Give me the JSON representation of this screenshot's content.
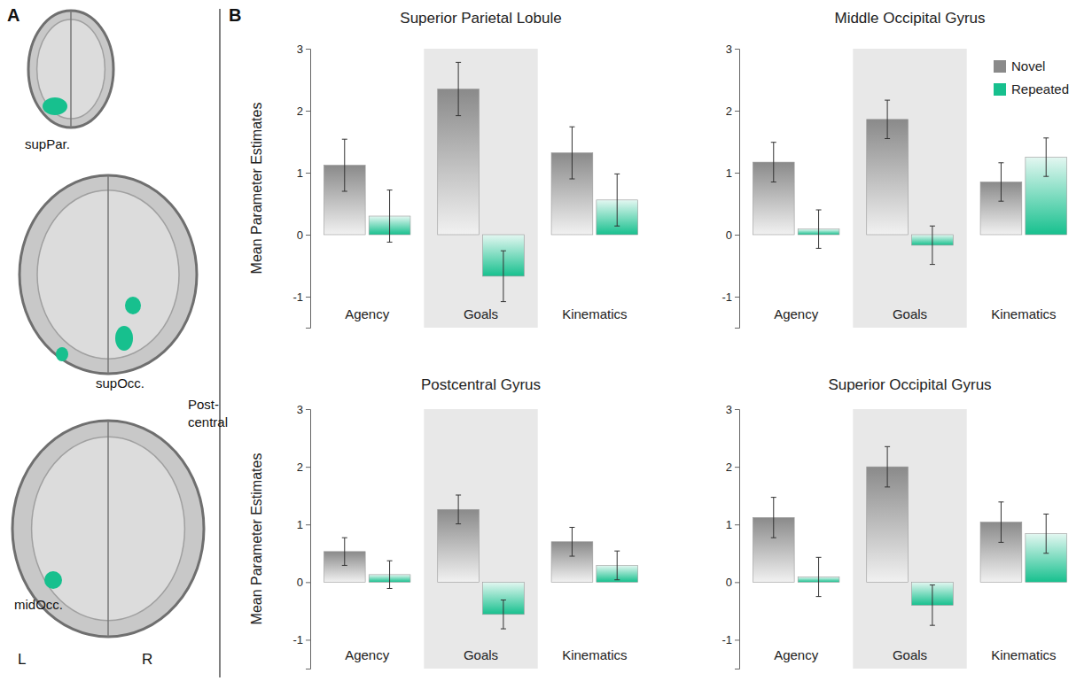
{
  "figure": {
    "panel_a": {
      "letter": "A",
      "labels": [
        "supPar.",
        "Post-central",
        "supOcc.",
        "midOcc."
      ],
      "sides": [
        "L",
        "R"
      ]
    },
    "panel_b": {
      "letter": "B"
    }
  },
  "chart_data": [
    {
      "type": "bar",
      "title": "Superior Parietal Lobule",
      "y_label": "Mean Parameter Estimates",
      "categories": [
        "Agency",
        "Goals",
        "Kinematics"
      ],
      "series": [
        {
          "color": "#8a8a8a",
          "values": [
            1.12,
            2.35,
            1.32
          ],
          "errors": [
            0.42,
            0.43,
            0.42
          ]
        },
        {
          "color": "#17c08e",
          "values": [
            0.3,
            -0.67,
            0.56
          ],
          "errors": [
            0.42,
            0.41,
            0.42
          ]
        }
      ],
      "ylim": [
        -1.5,
        3
      ],
      "yticks": [
        -1,
        0,
        1,
        2,
        3
      ]
    },
    {
      "type": "bar",
      "title": "Middle Occipital Gyrus",
      "categories": [
        "Agency",
        "Goals",
        "Kinematics"
      ],
      "series": [
        {
          "name": "Novel",
          "color": "#8a8a8a",
          "values": [
            1.17,
            1.86,
            0.85
          ],
          "errors": [
            0.32,
            0.31,
            0.31
          ]
        },
        {
          "name": "Repeated",
          "color": "#17c08e",
          "values": [
            0.09,
            -0.17,
            1.25
          ],
          "errors": [
            0.31,
            0.31,
            0.31
          ]
        }
      ],
      "ylim": [
        -1.5,
        3
      ],
      "yticks": [
        -1,
        0,
        1,
        2,
        3
      ],
      "legend": "upper right"
    },
    {
      "type": "bar",
      "title": "Postcentral Gyrus",
      "y_label": "Mean Parameter Estimates",
      "categories": [
        "Agency",
        "Goals",
        "Kinematics"
      ],
      "series": [
        {
          "color": "#8a8a8a",
          "values": [
            0.53,
            1.26,
            0.7
          ],
          "errors": [
            0.24,
            0.25,
            0.25
          ]
        },
        {
          "color": "#17c08e",
          "values": [
            0.13,
            -0.56,
            0.29
          ],
          "errors": [
            0.24,
            0.25,
            0.25
          ]
        }
      ],
      "ylim": [
        -1.5,
        3
      ],
      "yticks": [
        -1,
        0,
        1,
        2,
        3
      ]
    },
    {
      "type": "bar",
      "title": "Superior Occipital Gyrus",
      "categories": [
        "Agency",
        "Goals",
        "Kinematics"
      ],
      "series": [
        {
          "color": "#8a8a8a",
          "values": [
            1.12,
            2.0,
            1.04
          ],
          "errors": [
            0.35,
            0.35,
            0.35
          ]
        },
        {
          "color": "#17c08e",
          "values": [
            0.09,
            -0.4,
            0.84
          ],
          "errors": [
            0.34,
            0.35,
            0.34
          ]
        }
      ],
      "ylim": [
        -1.5,
        3
      ],
      "yticks": [
        -1,
        0,
        1,
        2,
        3
      ]
    }
  ]
}
